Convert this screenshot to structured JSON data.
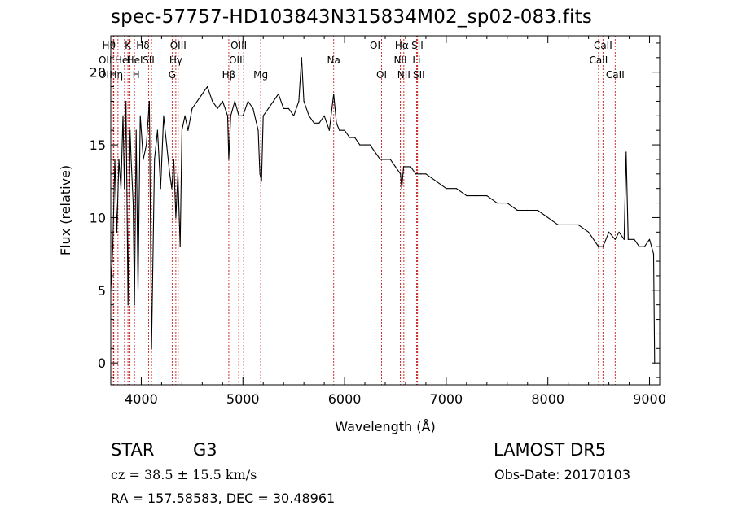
{
  "title": "spec-57757-HD103843N315834M02_sp02-083.fits",
  "chart_data": {
    "type": "line",
    "title": "spec-57757-HD103843N315834M02_sp02-083.fits",
    "xlabel": "Wavelength (Å)",
    "ylabel": "Flux (relative)",
    "xlim": [
      3700,
      9100
    ],
    "ylim": [
      -1.5,
      22.5
    ],
    "xticks": [
      4000,
      5000,
      6000,
      7000,
      8000,
      9000
    ],
    "yticks": [
      0,
      5,
      10,
      15,
      20
    ],
    "series": [
      {
        "x": [
          3700,
          3720,
          3740,
          3760,
          3780,
          3800,
          3820,
          3835,
          3850,
          3870,
          3890,
          3900,
          3920,
          3933,
          3950,
          3968,
          3990,
          4020,
          4050,
          4080,
          4101,
          4130,
          4160,
          4190,
          4220,
          4250,
          4280,
          4300,
          4320,
          4340,
          4360,
          4383,
          4400,
          4430,
          4460,
          4500,
          4550,
          4600,
          4650,
          4700,
          4750,
          4800,
          4850,
          4861,
          4880,
          4920,
          4960,
          5000,
          5050,
          5100,
          5150,
          5167,
          5183,
          5200,
          5250,
          5300,
          5350,
          5400,
          5450,
          5500,
          5550,
          5577,
          5600,
          5650,
          5700,
          5750,
          5800,
          5850,
          5893,
          5920,
          5950,
          6000,
          6050,
          6100,
          6150,
          6200,
          6250,
          6300,
          6350,
          6400,
          6450,
          6500,
          6550,
          6563,
          6580,
          6600,
          6650,
          6700,
          6750,
          6800,
          6900,
          7000,
          7100,
          7200,
          7300,
          7400,
          7500,
          7600,
          7700,
          7800,
          7900,
          8000,
          8100,
          8200,
          8300,
          8400,
          8498,
          8542,
          8600,
          8662,
          8700,
          8750,
          8770,
          8790,
          8850,
          8900,
          8950,
          9000,
          9040,
          9050
        ],
        "y": [
          5,
          8,
          14,
          9,
          14,
          12,
          17,
          12,
          18,
          4,
          16,
          14,
          11,
          4,
          16,
          5,
          17,
          14,
          15,
          18,
          1,
          14,
          16,
          12,
          17,
          15,
          13,
          12,
          14,
          10,
          13,
          8,
          16,
          17,
          16,
          17.5,
          18,
          18.5,
          19,
          18,
          17.5,
          18,
          17,
          14,
          17,
          18,
          17,
          17,
          18,
          17.5,
          16,
          13,
          12.5,
          17,
          17.5,
          18,
          18.5,
          17.5,
          17.5,
          17,
          18,
          21,
          18,
          17,
          16.5,
          16.5,
          17,
          16,
          18.5,
          16.5,
          16,
          16,
          15.5,
          15.5,
          15,
          15,
          15,
          14.5,
          14,
          14,
          14,
          13.5,
          13,
          12,
          13.5,
          13.5,
          13.5,
          13,
          13,
          13,
          12.5,
          12,
          12,
          11.5,
          11.5,
          11.5,
          11,
          11,
          10.5,
          10.5,
          10.5,
          10,
          9.5,
          9.5,
          9.5,
          9,
          8,
          8,
          9,
          8.5,
          9,
          8.5,
          14.5,
          8.5,
          8.5,
          8,
          8,
          8.5,
          7.5,
          0
        ]
      }
    ],
    "lines": [
      {
        "x": 3730,
        "label": "Hθ",
        "row": 0,
        "dx": -6
      },
      {
        "x": 3726,
        "label": "OII",
        "row": 1,
        "dx": -10
      },
      {
        "x": 3727,
        "label": "OII",
        "row": 2,
        "dx": -10
      },
      {
        "x": 3771,
        "label": "Hη",
        "row": 2,
        "dx": -2
      },
      {
        "x": 3835,
        "label": "HeI",
        "row": 1,
        "dx": -2
      },
      {
        "x": 3869,
        "label": "K",
        "row": 0,
        "dx": 0
      },
      {
        "x": 3889,
        "label": "HeI",
        "row": 1,
        "dx": 6
      },
      {
        "x": 3933,
        "label": "H",
        "row": 2,
        "dx": 2
      },
      {
        "x": 3968,
        "label": "Hδ",
        "row": 0,
        "dx": 6
      },
      {
        "x": 4072,
        "label": "SII",
        "row": 1,
        "dx": 0
      },
      {
        "x": 4101,
        "label": "",
        "row": 0,
        "dx": 0
      },
      {
        "x": 4304,
        "label": "G",
        "row": 2,
        "dx": 0
      },
      {
        "x": 4340,
        "label": "Hγ",
        "row": 1,
        "dx": 0
      },
      {
        "x": 4363,
        "label": "OIII",
        "row": 0,
        "dx": 0
      },
      {
        "x": 4861,
        "label": "Hβ",
        "row": 2,
        "dx": 0
      },
      {
        "x": 4959,
        "label": "OIII",
        "row": 0,
        "dx": 0
      },
      {
        "x": 5007,
        "label": "OIII",
        "row": 1,
        "dx": -8
      },
      {
        "x": 5175,
        "label": "Mg",
        "row": 2,
        "dx": 0
      },
      {
        "x": 5893,
        "label": "Na",
        "row": 1,
        "dx": 0
      },
      {
        "x": 6300,
        "label": "OI",
        "row": 0,
        "dx": 0
      },
      {
        "x": 6364,
        "label": "OI",
        "row": 2,
        "dx": 0
      },
      {
        "x": 6548,
        "label": "NII",
        "row": 1,
        "dx": 0
      },
      {
        "x": 6563,
        "label": "Hα",
        "row": 0,
        "dx": 0
      },
      {
        "x": 6583,
        "label": "NII",
        "row": 2,
        "dx": 0
      },
      {
        "x": 6708,
        "label": "Li",
        "row": 1,
        "dx": 0
      },
      {
        "x": 6716,
        "label": "SII",
        "row": 0,
        "dx": 0
      },
      {
        "x": 6731,
        "label": "SII",
        "row": 2,
        "dx": 0
      },
      {
        "x": 8498,
        "label": "CaII",
        "row": 1,
        "dx": 0
      },
      {
        "x": 8542,
        "label": "CaII",
        "row": 0,
        "dx": 0
      },
      {
        "x": 8662,
        "label": "CaII",
        "row": 2,
        "dx": 0
      }
    ]
  },
  "info": {
    "class": "STAR",
    "subclass": "G3",
    "survey": "LAMOST DR5",
    "cz": "cz = 38.5 ± 15.5 km/s",
    "obs_date": "Obs-Date: 20170103",
    "radec": "RA = 157.58583, DEC =  30.48961"
  }
}
